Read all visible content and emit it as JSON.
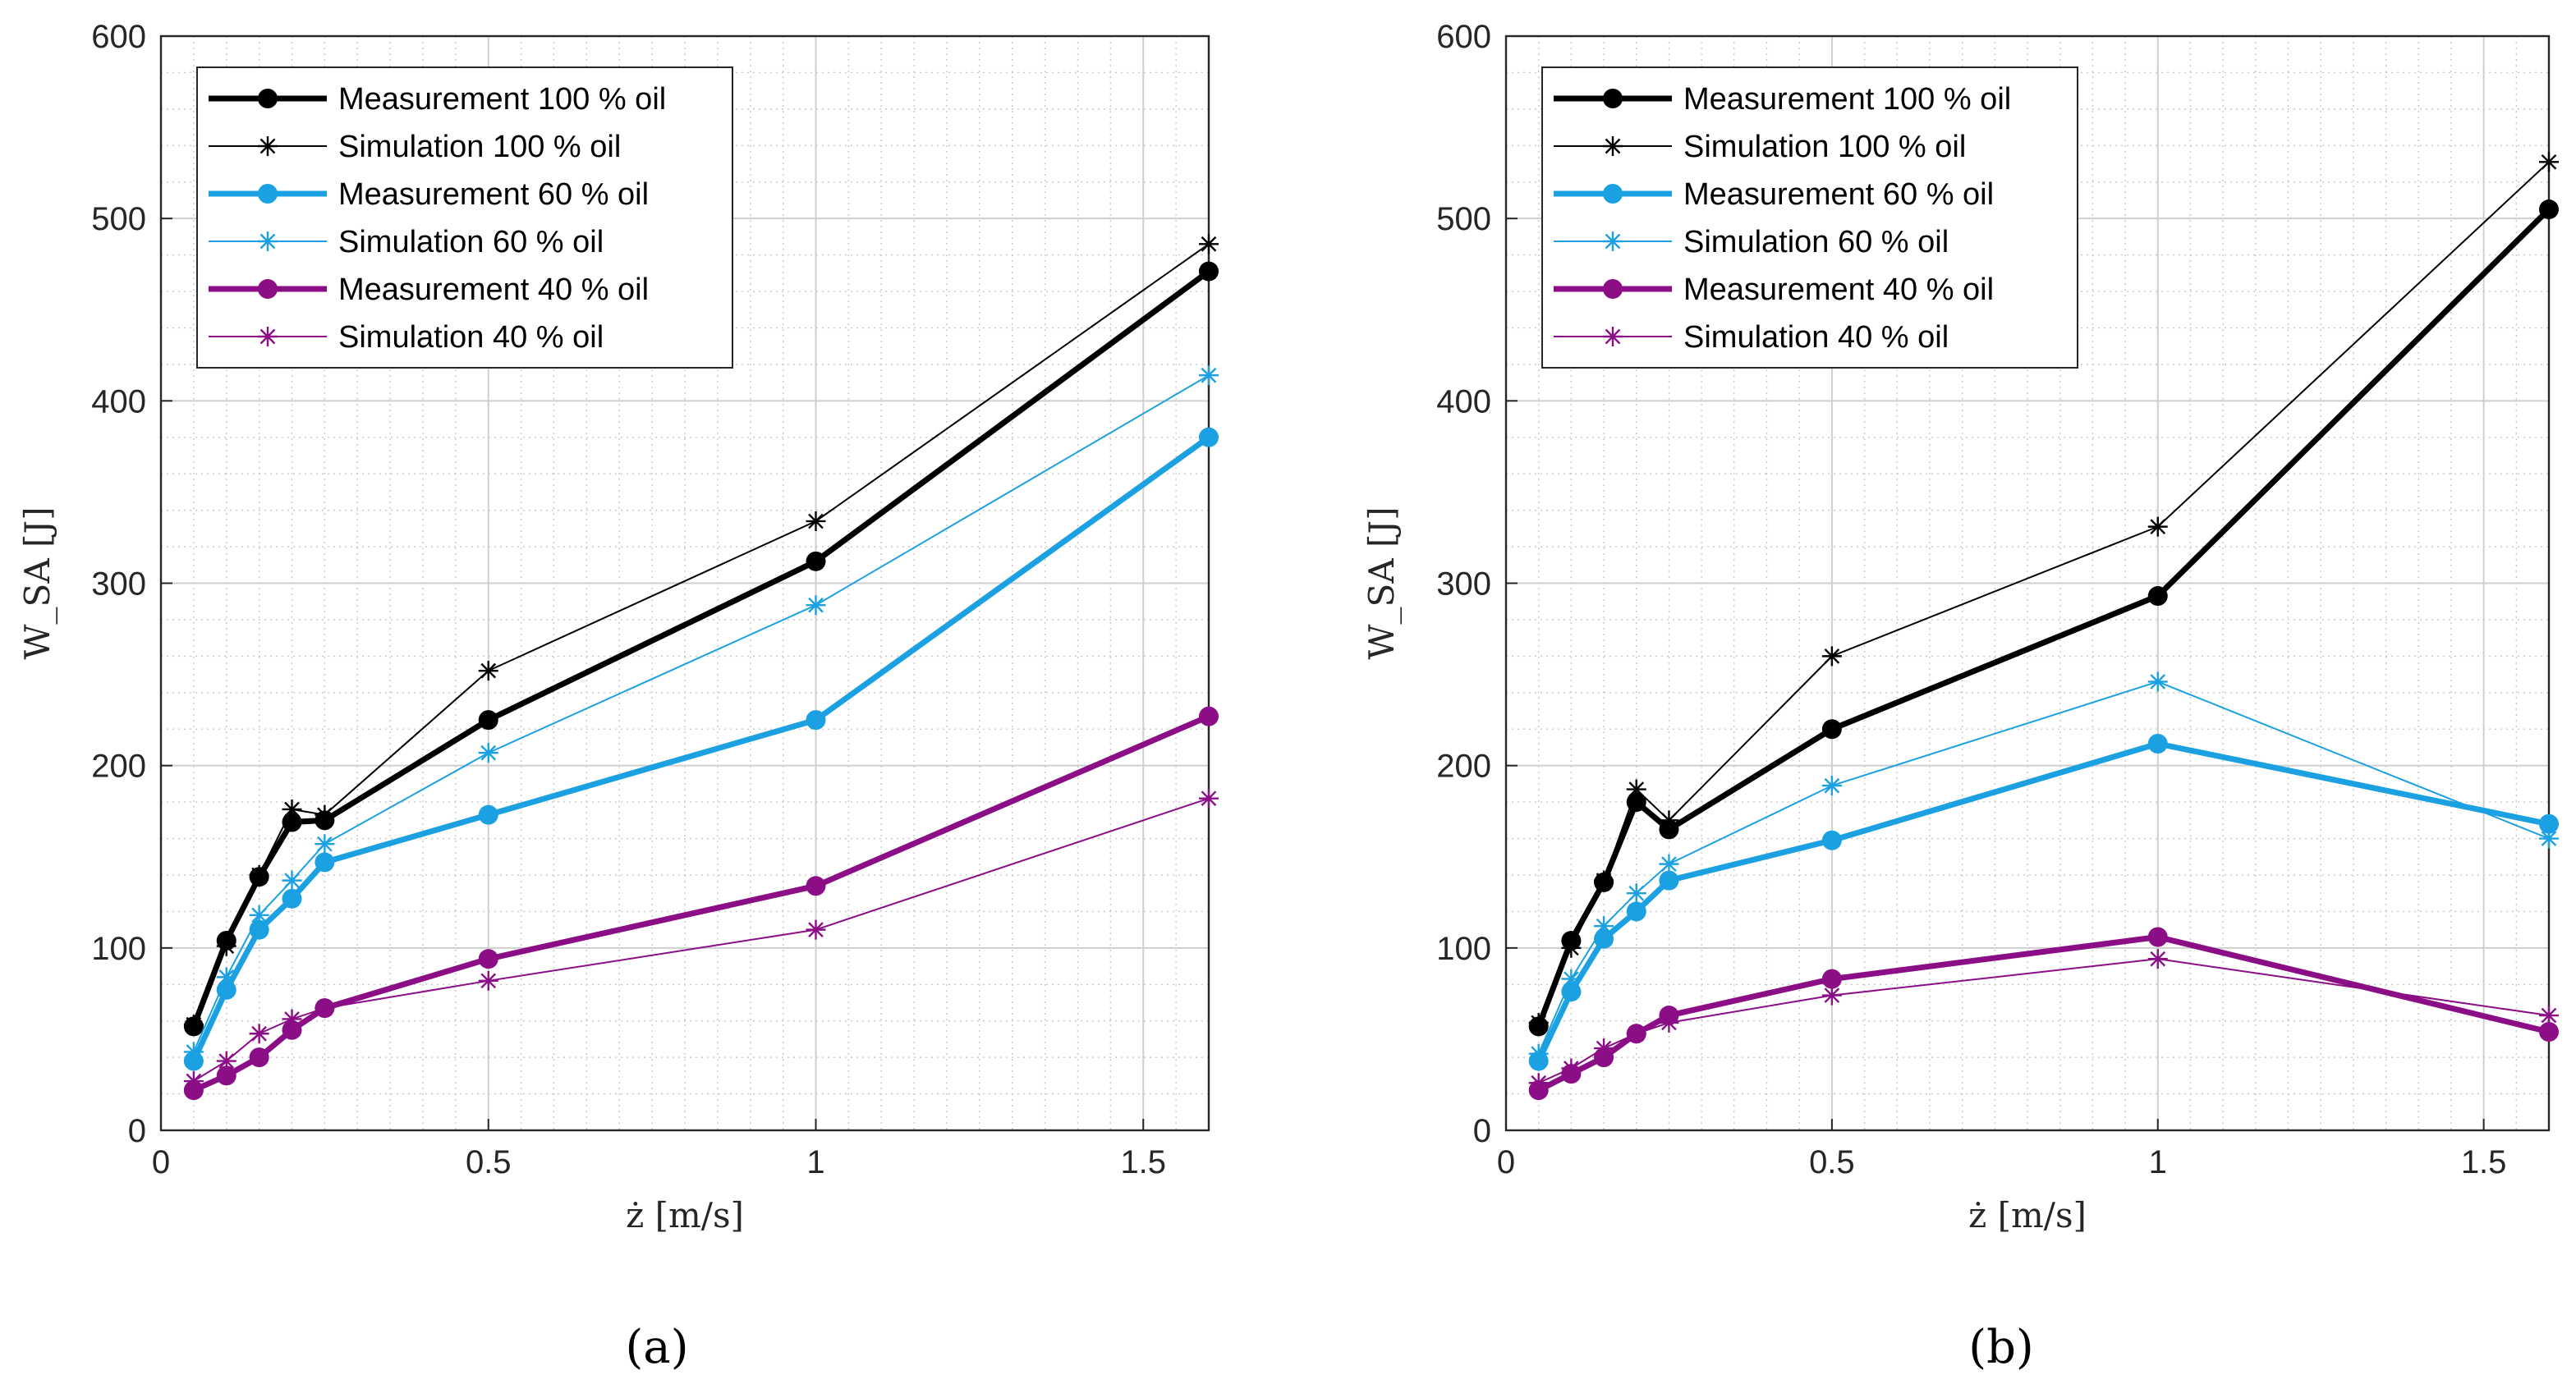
{
  "chart_data": [
    {
      "type": "line",
      "panel_label": "(a)",
      "xlabel": "ż [m/s]",
      "ylabel": "W_SA [J]",
      "xlim": [
        0,
        1.6
      ],
      "ylim": [
        0,
        600
      ],
      "xticks": [
        0,
        0.5,
        1,
        1.5
      ],
      "xtick_labels": [
        "0",
        "0.5",
        "1",
        "1.5"
      ],
      "yticks": [
        0,
        100,
        200,
        300,
        400,
        500,
        600
      ],
      "ytick_labels": [
        "0",
        "100",
        "200",
        "300",
        "400",
        "500",
        "600"
      ],
      "grid": true,
      "legend_position": "top-left",
      "x": [
        0.05,
        0.1,
        0.15,
        0.2,
        0.25,
        0.5,
        1.0,
        1.6
      ],
      "series": [
        {
          "name": "Measurement 100 % oil",
          "color": "#000000",
          "marker": "circle",
          "values": [
            57,
            104,
            139,
            169,
            170,
            225,
            312,
            471
          ]
        },
        {
          "name": "Simulation 100 % oil",
          "color": "#000000",
          "marker": "star",
          "values": [
            58,
            101,
            140,
            176,
            173,
            252,
            334,
            486
          ]
        },
        {
          "name": "Measurement 60 % oil",
          "color": "#1ba1e2",
          "marker": "circle",
          "values": [
            38,
            77,
            110,
            127,
            147,
            173,
            225,
            380
          ]
        },
        {
          "name": "Simulation 60 % oil",
          "color": "#1ba1e2",
          "marker": "star",
          "values": [
            43,
            84,
            118,
            137,
            157,
            207,
            288,
            414
          ]
        },
        {
          "name": "Measurement 40 % oil",
          "color": "#8b0e86",
          "marker": "circle",
          "values": [
            22,
            30,
            40,
            55,
            67,
            94,
            134,
            227
          ]
        },
        {
          "name": "Simulation 40 % oil",
          "color": "#8b0e86",
          "marker": "star",
          "values": [
            27,
            38,
            53,
            61,
            67,
            82,
            110,
            182
          ]
        }
      ]
    },
    {
      "type": "line",
      "panel_label": "(b)",
      "xlabel": "ż [m/s]",
      "ylabel": "W_SA [J]",
      "xlim": [
        0,
        1.6
      ],
      "ylim": [
        0,
        600
      ],
      "xticks": [
        0,
        0.5,
        1,
        1.5
      ],
      "xtick_labels": [
        "0",
        "0.5",
        "1",
        "1.5"
      ],
      "yticks": [
        0,
        100,
        200,
        300,
        400,
        500,
        600
      ],
      "ytick_labels": [
        "0",
        "100",
        "200",
        "300",
        "400",
        "500",
        "600"
      ],
      "grid": true,
      "legend_position": "top-left",
      "x": [
        0.05,
        0.1,
        0.15,
        0.2,
        0.25,
        0.5,
        1.0,
        1.6
      ],
      "series": [
        {
          "name": "Measurement 100 % oil",
          "color": "#000000",
          "marker": "circle",
          "values": [
            57,
            104,
            136,
            180,
            165,
            220,
            293,
            505
          ]
        },
        {
          "name": "Simulation 100 % oil",
          "color": "#000000",
          "marker": "star",
          "values": [
            59,
            100,
            137,
            187,
            170,
            260,
            331,
            531
          ]
        },
        {
          "name": "Measurement 60 % oil",
          "color": "#1ba1e2",
          "marker": "circle",
          "values": [
            38,
            76,
            105,
            120,
            137,
            159,
            212,
            168
          ]
        },
        {
          "name": "Simulation 60 % oil",
          "color": "#1ba1e2",
          "marker": "star",
          "values": [
            42,
            83,
            112,
            130,
            146,
            189,
            246,
            160
          ]
        },
        {
          "name": "Measurement 40 % oil",
          "color": "#8b0e86",
          "marker": "circle",
          "values": [
            22,
            31,
            40,
            53,
            63,
            83,
            106,
            54
          ]
        },
        {
          "name": "Simulation 40 % oil",
          "color": "#8b0e86",
          "marker": "star",
          "values": [
            26,
            34,
            45,
            53,
            59,
            74,
            94,
            63
          ]
        }
      ]
    }
  ]
}
